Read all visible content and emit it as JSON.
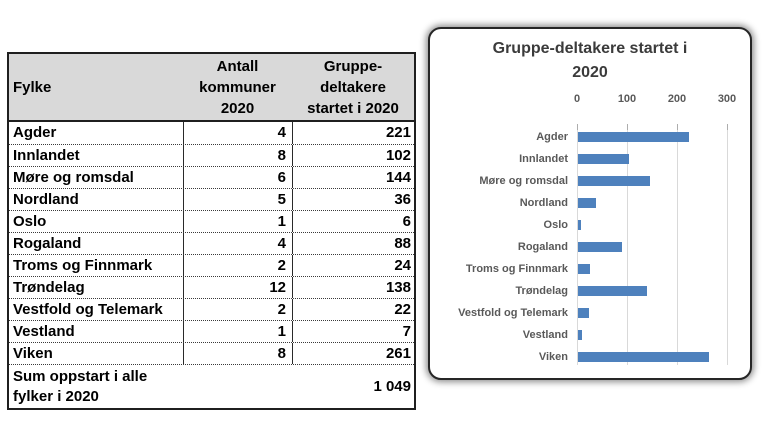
{
  "table": {
    "header": {
      "fylke": "Fylke",
      "antall_lines": [
        "Antall",
        "kommuner",
        "2020"
      ],
      "gruppe_lines": [
        "Gruppe-",
        "deltakere",
        "startet i 2020"
      ]
    },
    "rows": [
      {
        "fylke": "Agder",
        "kommuner": "4",
        "deltakere": "221"
      },
      {
        "fylke": "Innlandet",
        "kommuner": "8",
        "deltakere": "102"
      },
      {
        "fylke": "Møre og romsdal",
        "kommuner": "6",
        "deltakere": "144"
      },
      {
        "fylke": "Nordland",
        "kommuner": "5",
        "deltakere": "36"
      },
      {
        "fylke": "Oslo",
        "kommuner": "1",
        "deltakere": "6"
      },
      {
        "fylke": "Rogaland",
        "kommuner": "4",
        "deltakere": "88"
      },
      {
        "fylke": "Troms og Finnmark",
        "kommuner": "2",
        "deltakere": "24"
      },
      {
        "fylke": "Trøndelag",
        "kommuner": "12",
        "deltakere": "138"
      },
      {
        "fylke": "Vestfold og Telemark",
        "kommuner": "2",
        "deltakere": "22"
      },
      {
        "fylke": "Vestland",
        "kommuner": "1",
        "deltakere": "7"
      },
      {
        "fylke": "Viken",
        "kommuner": "8",
        "deltakere": "261"
      }
    ],
    "sum": {
      "label_line1": "Sum oppstart i alle",
      "label_line2": "fylker i 2020",
      "value": "1 049"
    }
  },
  "chart": {
    "title_line1": "Gruppe-deltakere startet i",
    "title_line2": "2020",
    "x_tick_labels": [
      "0",
      "100",
      "200",
      "300"
    ]
  },
  "colors": {
    "bar_fill": "#4E81BD",
    "table_header_bg": "#D9D9D9",
    "grid_line": "#D9D9D9",
    "axis_text": "#595959"
  },
  "chart_data": {
    "type": "bar",
    "orientation": "horizontal",
    "title": "Gruppe-deltakere startet i 2020",
    "categories": [
      "Agder",
      "Innlandet",
      "Møre og romsdal",
      "Nordland",
      "Oslo",
      "Rogaland",
      "Troms og Finnmark",
      "Trøndelag",
      "Vestfold og Telemark",
      "Vestland",
      "Viken"
    ],
    "values": [
      221,
      102,
      144,
      36,
      6,
      88,
      24,
      138,
      22,
      7,
      261
    ],
    "xlabel": "",
    "ylabel": "",
    "xlim": [
      0,
      300
    ],
    "x_ticks": [
      0,
      100,
      200,
      300
    ],
    "axis_position": "top",
    "grid": true,
    "legend": false
  }
}
